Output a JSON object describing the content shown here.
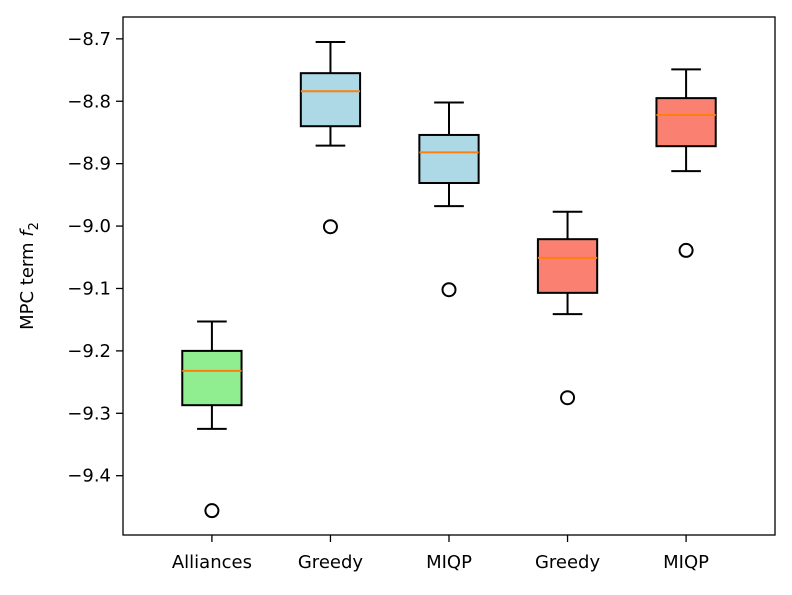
{
  "chart_data": {
    "type": "box",
    "title": "",
    "xlabel": "",
    "ylabel_main": "MPC term ",
    "ylabel_var": "f",
    "ylabel_sub": "2",
    "ylim": [
      -9.495,
      -8.665
    ],
    "yticks": [
      -8.7,
      -8.8,
      -8.9,
      -9.0,
      -9.1,
      -9.2,
      -9.3,
      -9.4
    ],
    "ytick_labels": [
      "−8.7",
      "−8.8",
      "−8.9",
      "−9.0",
      "−9.1",
      "−9.2",
      "−9.3",
      "−9.4"
    ],
    "categories": [
      "Alliances",
      "Greedy",
      "MIQP",
      "Greedy",
      "MIQP"
    ],
    "boxes": [
      {
        "label": "Alliances",
        "color": "#90ee90",
        "whislo": -9.325,
        "q1": -9.287,
        "median": -9.232,
        "q3": -9.2,
        "whishi": -9.153,
        "fliers": [
          -9.456
        ]
      },
      {
        "label": "Greedy",
        "color": "#add8e6",
        "whislo": -8.871,
        "q1": -8.84,
        "median": -8.784,
        "q3": -8.755,
        "whishi": -8.705,
        "fliers": [
          -9.001
        ]
      },
      {
        "label": "MIQP",
        "color": "#add8e6",
        "whislo": -8.968,
        "q1": -8.931,
        "median": -8.882,
        "q3": -8.854,
        "whishi": -8.802,
        "fliers": [
          -9.102
        ]
      },
      {
        "label": "Greedy",
        "color": "#fa8072",
        "whislo": -9.141,
        "q1": -9.107,
        "median": -9.051,
        "q3": -9.021,
        "whishi": -8.977,
        "fliers": [
          -9.275
        ]
      },
      {
        "label": "MIQP",
        "color": "#fa8072",
        "whislo": -8.912,
        "q1": -8.872,
        "median": -8.822,
        "q3": -8.795,
        "whishi": -8.749,
        "fliers": [
          -9.039
        ]
      }
    ],
    "median_color": "#ff7f0e",
    "grid": false
  }
}
